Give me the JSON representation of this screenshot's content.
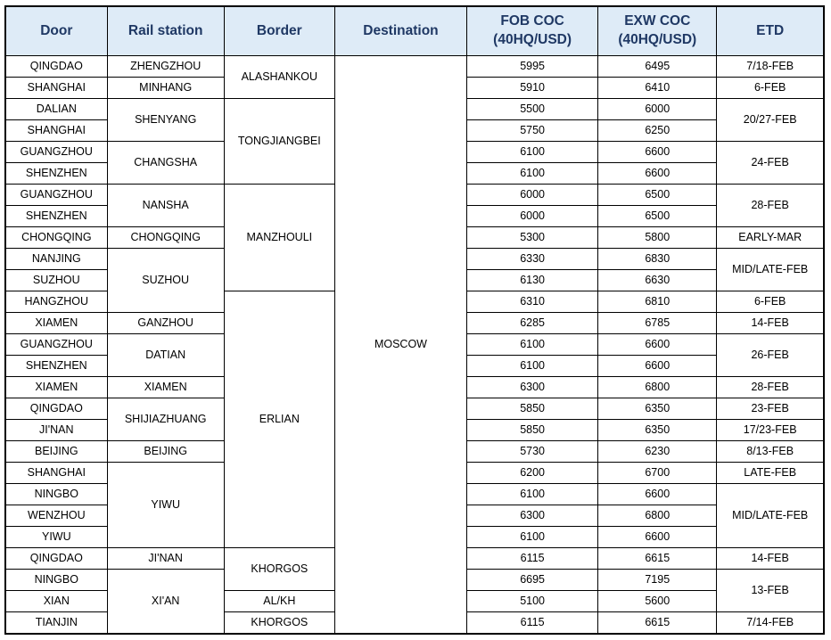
{
  "table": {
    "colors": {
      "header_bg": "#DEEBF7",
      "header_text": "#1F3864",
      "grid_border": "#000000"
    },
    "headers": [
      {
        "col": "door",
        "label": "Door"
      },
      {
        "col": "rail",
        "label": "Rail station"
      },
      {
        "col": "border",
        "label": "Border"
      },
      {
        "col": "destination",
        "label": "Destination"
      },
      {
        "col": "fob",
        "label": "FOB COC\n(40HQ/USD)"
      },
      {
        "col": "exw",
        "label": "EXW COC\n(40HQ/USD)"
      },
      {
        "col": "etd",
        "label": "ETD"
      }
    ],
    "rows": [
      [
        {
          "t": "QINGDAO",
          "col": "door"
        },
        {
          "t": "ZHENGZHOU",
          "col": "rail"
        },
        {
          "t": "ALASHANKOU",
          "col": "border",
          "rs": 2
        },
        {
          "t": "MOSCOW",
          "col": "destination",
          "rs": 27
        },
        {
          "t": "5995",
          "col": "fob"
        },
        {
          "t": "6495",
          "col": "exw"
        },
        {
          "t": "7/18-FEB",
          "col": "etd"
        }
      ],
      [
        {
          "t": "SHANGHAI",
          "col": "door"
        },
        {
          "t": "MINHANG",
          "col": "rail"
        },
        {
          "t": "5910",
          "col": "fob"
        },
        {
          "t": "6410",
          "col": "exw"
        },
        {
          "t": "6-FEB",
          "col": "etd"
        }
      ],
      [
        {
          "t": "DALIAN",
          "col": "door"
        },
        {
          "t": "SHENYANG",
          "col": "rail",
          "rs": 2
        },
        {
          "t": "TONGJIANGBEI",
          "col": "border",
          "rs": 4
        },
        {
          "t": "5500",
          "col": "fob"
        },
        {
          "t": "6000",
          "col": "exw"
        },
        {
          "t": "20/27-FEB",
          "col": "etd",
          "rs": 2
        }
      ],
      [
        {
          "t": "SHANGHAI",
          "col": "door"
        },
        {
          "t": "5750",
          "col": "fob"
        },
        {
          "t": "6250",
          "col": "exw"
        }
      ],
      [
        {
          "t": "GUANGZHOU",
          "col": "door"
        },
        {
          "t": "CHANGSHA",
          "col": "rail",
          "rs": 2
        },
        {
          "t": "6100",
          "col": "fob"
        },
        {
          "t": "6600",
          "col": "exw"
        },
        {
          "t": "24-FEB",
          "col": "etd",
          "rs": 2
        }
      ],
      [
        {
          "t": "SHENZHEN",
          "col": "door"
        },
        {
          "t": "6100",
          "col": "fob"
        },
        {
          "t": "6600",
          "col": "exw"
        }
      ],
      [
        {
          "t": "GUANGZHOU",
          "col": "door"
        },
        {
          "t": "NANSHA",
          "col": "rail",
          "rs": 2
        },
        {
          "t": "MANZHOULI",
          "col": "border",
          "rs": 5
        },
        {
          "t": "6000",
          "col": "fob"
        },
        {
          "t": "6500",
          "col": "exw"
        },
        {
          "t": "28-FEB",
          "col": "etd",
          "rs": 2
        }
      ],
      [
        {
          "t": "SHENZHEN",
          "col": "door"
        },
        {
          "t": "6000",
          "col": "fob"
        },
        {
          "t": "6500",
          "col": "exw"
        }
      ],
      [
        {
          "t": "CHONGQING",
          "col": "door"
        },
        {
          "t": "CHONGQING",
          "col": "rail"
        },
        {
          "t": "5300",
          "col": "fob"
        },
        {
          "t": "5800",
          "col": "exw"
        },
        {
          "t": "EARLY-MAR",
          "col": "etd"
        }
      ],
      [
        {
          "t": "NANJING",
          "col": "door"
        },
        {
          "t": "SUZHOU",
          "col": "rail",
          "rs": 3
        },
        {
          "t": "6330",
          "col": "fob"
        },
        {
          "t": "6830",
          "col": "exw"
        },
        {
          "t": "MID/LATE-FEB",
          "col": "etd",
          "rs": 2
        }
      ],
      [
        {
          "t": "SUZHOU",
          "col": "door"
        },
        {
          "t": "6130",
          "col": "fob"
        },
        {
          "t": "6630",
          "col": "exw"
        }
      ],
      [
        {
          "t": "HANGZHOU",
          "col": "door"
        },
        {
          "t": "ERLIAN",
          "col": "border",
          "rs": 12
        },
        {
          "t": "6310",
          "col": "fob"
        },
        {
          "t": "6810",
          "col": "exw"
        },
        {
          "t": "6-FEB",
          "col": "etd"
        }
      ],
      [
        {
          "t": "XIAMEN",
          "col": "door"
        },
        {
          "t": "GANZHOU",
          "col": "rail"
        },
        {
          "t": "6285",
          "col": "fob"
        },
        {
          "t": "6785",
          "col": "exw"
        },
        {
          "t": "14-FEB",
          "col": "etd"
        }
      ],
      [
        {
          "t": "GUANGZHOU",
          "col": "door"
        },
        {
          "t": "DATIAN",
          "col": "rail",
          "rs": 2
        },
        {
          "t": "6100",
          "col": "fob"
        },
        {
          "t": "6600",
          "col": "exw"
        },
        {
          "t": "26-FEB",
          "col": "etd",
          "rs": 2
        }
      ],
      [
        {
          "t": "SHENZHEN",
          "col": "door"
        },
        {
          "t": "6100",
          "col": "fob"
        },
        {
          "t": "6600",
          "col": "exw"
        }
      ],
      [
        {
          "t": "XIAMEN",
          "col": "door"
        },
        {
          "t": "XIAMEN",
          "col": "rail"
        },
        {
          "t": "6300",
          "col": "fob"
        },
        {
          "t": "6800",
          "col": "exw"
        },
        {
          "t": "28-FEB",
          "col": "etd"
        }
      ],
      [
        {
          "t": "QINGDAO",
          "col": "door"
        },
        {
          "t": "SHIJIAZHUANG",
          "col": "rail",
          "rs": 2
        },
        {
          "t": "5850",
          "col": "fob"
        },
        {
          "t": "6350",
          "col": "exw"
        },
        {
          "t": "23-FEB",
          "col": "etd"
        }
      ],
      [
        {
          "t": "JI'NAN",
          "col": "door"
        },
        {
          "t": "5850",
          "col": "fob"
        },
        {
          "t": "6350",
          "col": "exw"
        },
        {
          "t": "17/23-FEB",
          "col": "etd"
        }
      ],
      [
        {
          "t": "BEIJING",
          "col": "door"
        },
        {
          "t": "BEIJING",
          "col": "rail"
        },
        {
          "t": "5730",
          "col": "fob"
        },
        {
          "t": "6230",
          "col": "exw"
        },
        {
          "t": "8/13-FEB",
          "col": "etd"
        }
      ],
      [
        {
          "t": "SHANGHAI",
          "col": "door"
        },
        {
          "t": "YIWU",
          "col": "rail",
          "rs": 4
        },
        {
          "t": "6200",
          "col": "fob"
        },
        {
          "t": "6700",
          "col": "exw"
        },
        {
          "t": "LATE-FEB",
          "col": "etd"
        }
      ],
      [
        {
          "t": "NINGBO",
          "col": "door"
        },
        {
          "t": "6100",
          "col": "fob"
        },
        {
          "t": "6600",
          "col": "exw"
        },
        {
          "t": "MID/LATE-FEB",
          "col": "etd",
          "rs": 3
        }
      ],
      [
        {
          "t": "WENZHOU",
          "col": "door"
        },
        {
          "t": "6300",
          "col": "fob"
        },
        {
          "t": "6800",
          "col": "exw"
        }
      ],
      [
        {
          "t": "YIWU",
          "col": "door"
        },
        {
          "t": "6100",
          "col": "fob"
        },
        {
          "t": "6600",
          "col": "exw"
        }
      ],
      [
        {
          "t": "QINGDAO",
          "col": "door"
        },
        {
          "t": "JI'NAN",
          "col": "rail"
        },
        {
          "t": "KHORGOS",
          "col": "border",
          "rs": 2
        },
        {
          "t": "6115",
          "col": "fob"
        },
        {
          "t": "6615",
          "col": "exw"
        },
        {
          "t": "14-FEB",
          "col": "etd"
        }
      ],
      [
        {
          "t": "NINGBO",
          "col": "door"
        },
        {
          "t": "XI'AN",
          "col": "rail",
          "rs": 3
        },
        {
          "t": "6695",
          "col": "fob"
        },
        {
          "t": "7195",
          "col": "exw"
        },
        {
          "t": "13-FEB",
          "col": "etd",
          "rs": 2
        }
      ],
      [
        {
          "t": "XIAN",
          "col": "door"
        },
        {
          "t": "AL/KH",
          "col": "border"
        },
        {
          "t": "5100",
          "col": "fob"
        },
        {
          "t": "5600",
          "col": "exw"
        }
      ],
      [
        {
          "t": "TIANJIN",
          "col": "door"
        },
        {
          "t": "KHORGOS",
          "col": "border"
        },
        {
          "t": "6115",
          "col": "fob"
        },
        {
          "t": "6615",
          "col": "exw"
        },
        {
          "t": "7/14-FEB",
          "col": "etd"
        }
      ]
    ]
  }
}
